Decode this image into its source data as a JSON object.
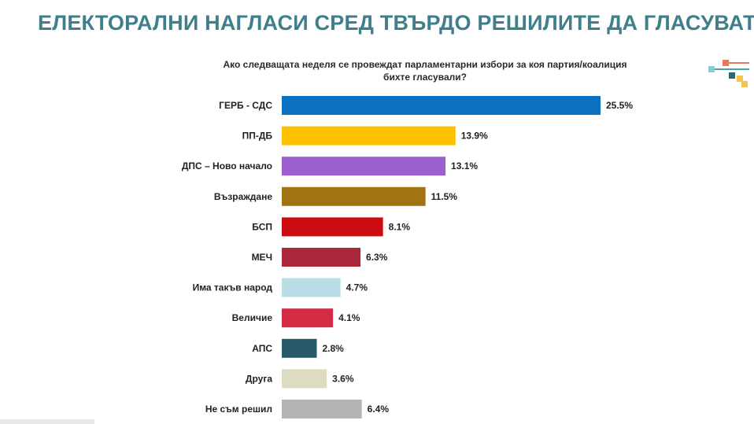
{
  "header": {
    "title": "ЕЛЕКТОРАЛНИ НАГЛАСИ СРЕД ТВЪРДО РЕШИЛИТЕ ДА ГЛАСУВАТ"
  },
  "logo": {
    "colors": [
      "#e8765a",
      "#4aa3a9",
      "#2b6a75",
      "#f3c44e",
      "#8fc9cf"
    ]
  },
  "chart_data": {
    "type": "bar",
    "orientation": "horizontal",
    "title": "Ако следващата неделя се провеждат парламентарни избори за коя партия/коалиция бихте гласували?",
    "title_lines": [
      "Ако следващата неделя се провеждат парламентарни избори за коя партия/коалиция",
      "бихте гласували?"
    ],
    "categories": [
      "ГЕРБ - СДС",
      "ПП-ДБ",
      "ДПС – Ново начало",
      "Възраждане",
      "БСП",
      "МЕЧ",
      "Има такъв народ",
      "Величие",
      "АПС",
      "Друга",
      "Не съм решил"
    ],
    "values": [
      25.5,
      13.9,
      13.1,
      11.5,
      8.1,
      6.3,
      4.7,
      4.1,
      2.8,
      3.6,
      6.4
    ],
    "value_labels": [
      "25.5%",
      "13.9%",
      "13.1%",
      "11.5%",
      "8.1%",
      "6.3%",
      "4.7%",
      "4.1%",
      "2.8%",
      "3.6%",
      "6.4%"
    ],
    "colors": [
      "#0a70c0",
      "#fcc200",
      "#9c5fcf",
      "#a07412",
      "#cc0b10",
      "#a8283a",
      "#b9dde5",
      "#d42b45",
      "#27596a",
      "#dddcc1",
      "#b4b4b4"
    ],
    "xlim": [
      0,
      25.5
    ],
    "grid": false,
    "legend": "none"
  }
}
